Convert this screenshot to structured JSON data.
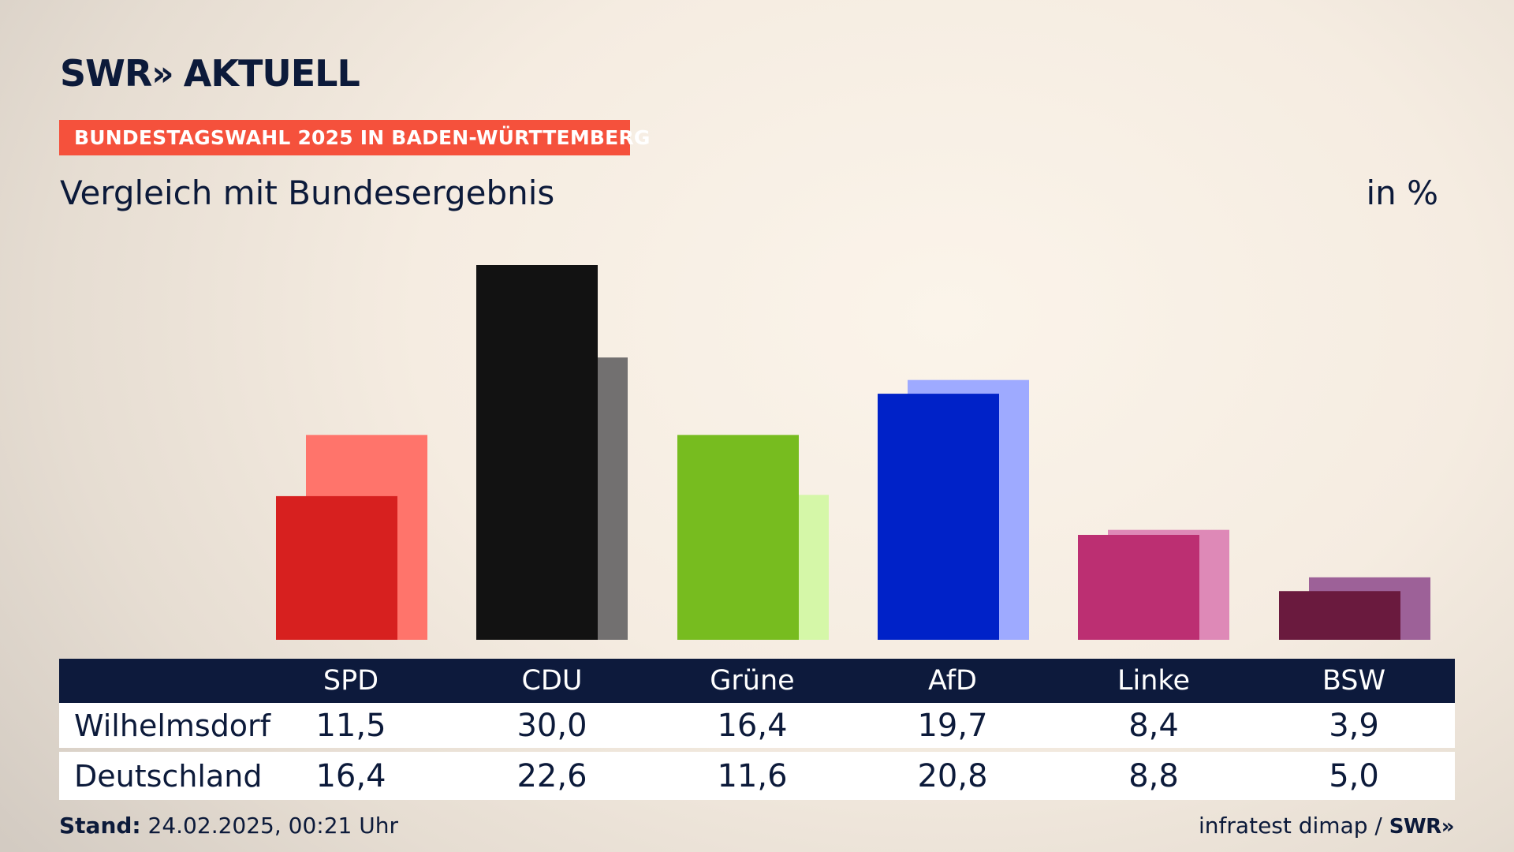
{
  "brand": {
    "swr": "SWR",
    "chevrons": "»",
    "aktuell": "AKTUELL"
  },
  "topic_badge": "BUNDESTAGSWAHL 2025 IN BADEN-WÜRTTEMBERG",
  "subtitle": "Vergleich mit Bundesergebnis",
  "unit": "in %",
  "chart_data": {
    "type": "bar",
    "categories": [
      "SPD",
      "CDU",
      "Grüne",
      "AfD",
      "Linke",
      "BSW"
    ],
    "series": [
      {
        "name": "Wilhelmsdorf",
        "values": [
          11.5,
          30.0,
          16.4,
          19.7,
          8.4,
          3.9
        ],
        "colors": [
          "#d7201f",
          "#121212",
          "#77bc1f",
          "#0022c8",
          "#bc2f72",
          "#6a1a3e"
        ]
      },
      {
        "name": "Deutschland",
        "values": [
          16.4,
          22.6,
          11.6,
          20.8,
          8.8,
          5.0
        ],
        "colors": [
          "#ff746b",
          "#727070",
          "#d5f7a8",
          "#9eaaff",
          "#de89b7",
          "#9d6198"
        ]
      }
    ],
    "ylim": [
      0,
      30
    ],
    "grid": false
  },
  "table": {
    "headers": [
      "SPD",
      "CDU",
      "Grüne",
      "AfD",
      "Linke",
      "BSW"
    ],
    "rows": [
      {
        "label": "Wilhelmsdorf",
        "values": [
          "11,5",
          "30,0",
          "16,4",
          "19,7",
          "8,4",
          "3,9"
        ]
      },
      {
        "label": "Deutschland",
        "values": [
          "16,4",
          "22,6",
          "11,6",
          "20,8",
          "8,8",
          "5,0"
        ]
      }
    ]
  },
  "footer": {
    "stand_label": "Stand:",
    "stand_value": "24.02.2025, 00:21 Uhr",
    "source": "infratest dimap /",
    "source_logo": "SWR",
    "source_logo_chevrons": "»"
  }
}
